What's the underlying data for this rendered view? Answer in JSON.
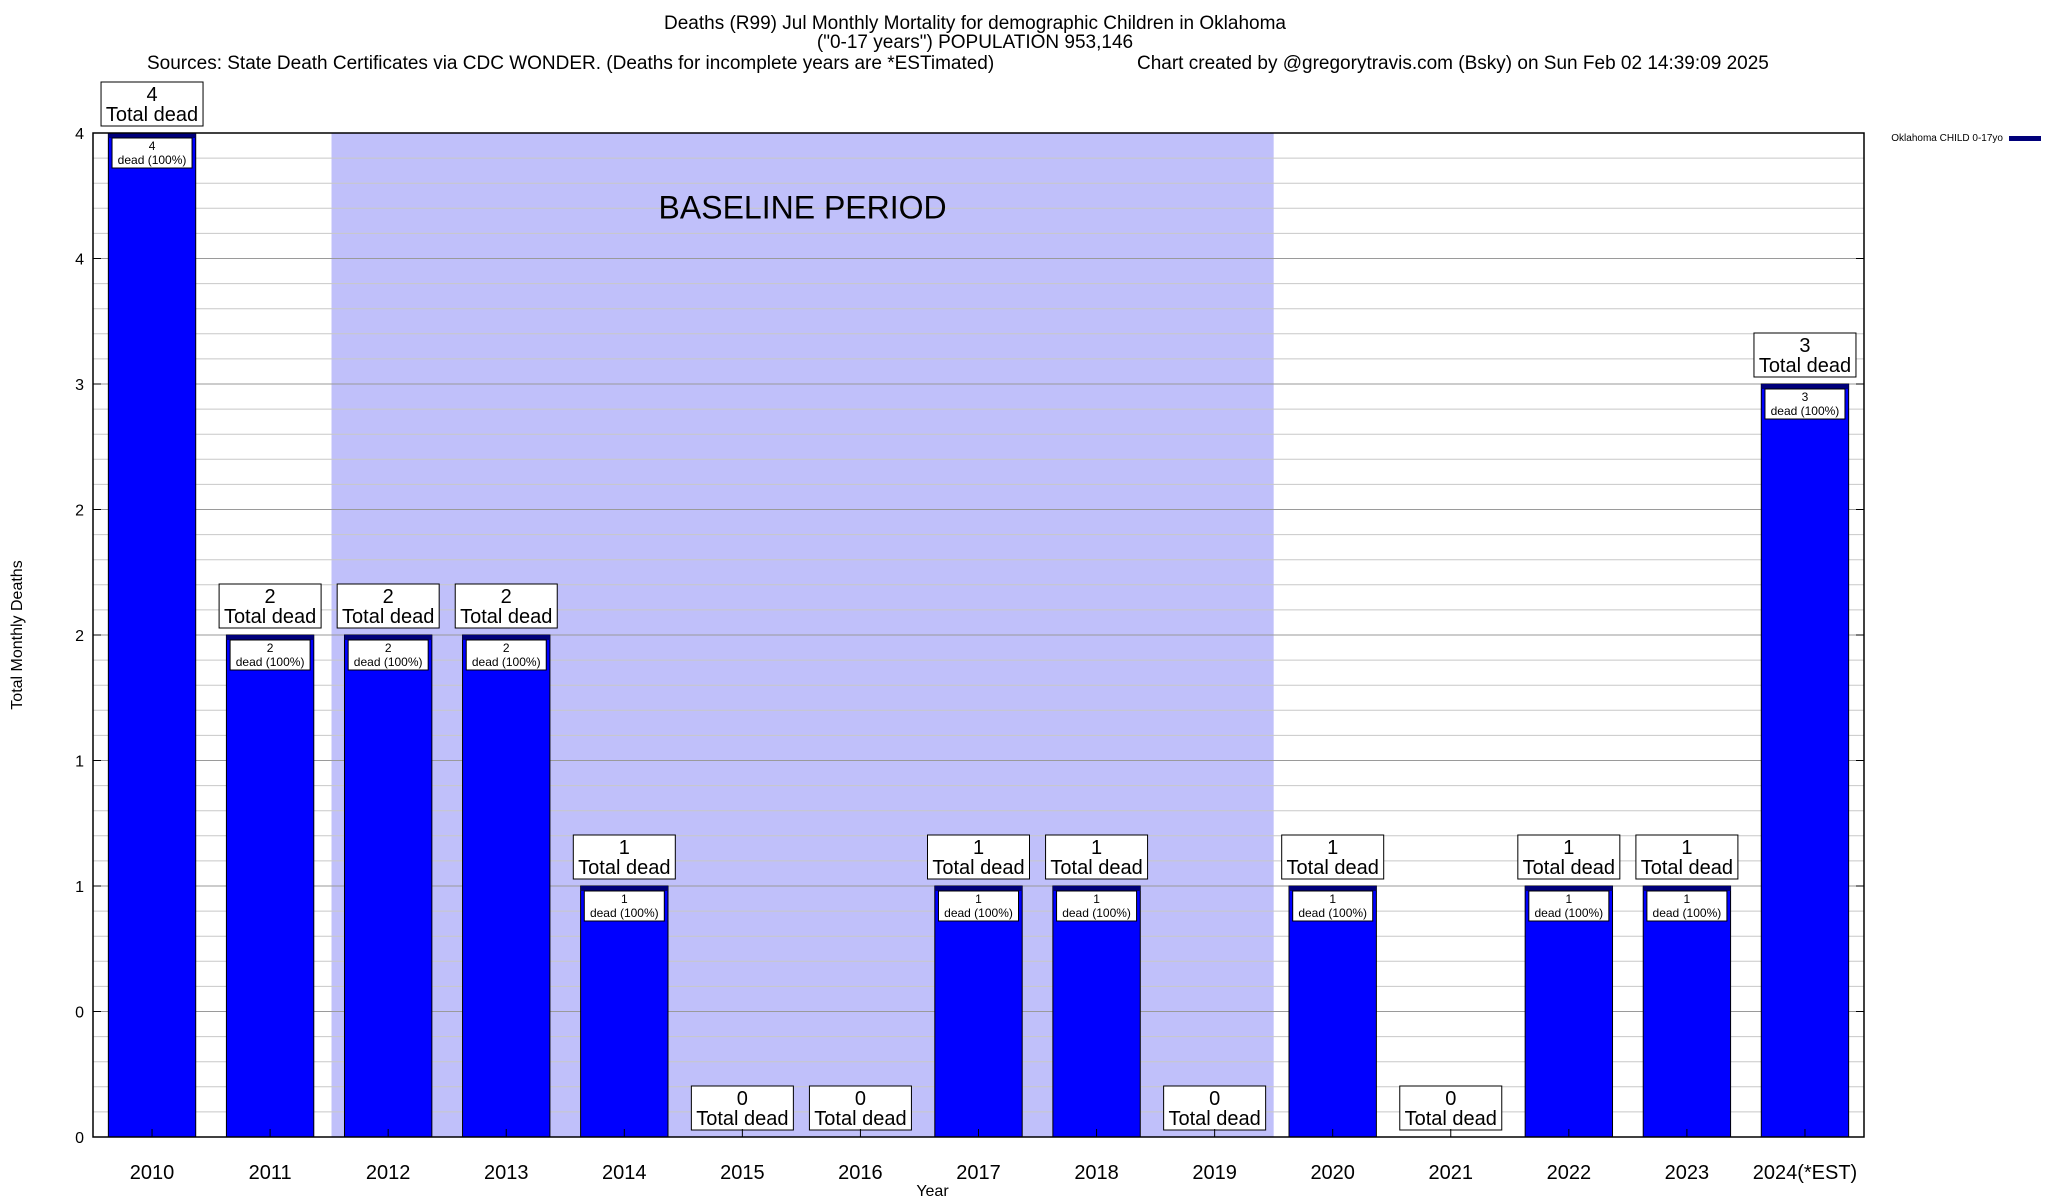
{
  "header": {
    "title_line1": "Deaths (R99) Jul Monthly Mortality for demographic Children in Oklahoma",
    "title_line2": "(\"0-17 years\") POPULATION 953,146",
    "sources": "Sources: State Death Certificates via CDC WONDER. (Deaths for incomplete years are *ESTimated)",
    "credit": "Chart created by @gregorytravis.com (Bsky) on Sun Feb 02 14:39:09 2025"
  },
  "colors": {
    "bar": "#0000ff",
    "bar_top": "#00007a",
    "baseline_band": "#c0c0fa",
    "grid": "#c8c8c8"
  },
  "chart_data": {
    "type": "bar",
    "xlabel": "Year",
    "ylabel": "Total Monthly Deaths",
    "ylim": [
      0,
      4
    ],
    "yticks": [
      {
        "value": 0,
        "label": "0"
      },
      {
        "value": 0.5,
        "label": "0"
      },
      {
        "value": 1,
        "label": "1"
      },
      {
        "value": 1.5,
        "label": "1"
      },
      {
        "value": 2,
        "label": "2"
      },
      {
        "value": 2.5,
        "label": "2"
      },
      {
        "value": 3,
        "label": "3"
      },
      {
        "value": 3.5,
        "label": "4"
      },
      {
        "value": 4,
        "label": "4"
      }
    ],
    "grid": true,
    "legend": {
      "position": "top-right",
      "label": "Oklahoma CHILD 0-17yo"
    },
    "baseline_period": {
      "label": "BASELINE PERIOD",
      "from": "2012",
      "to": "2019"
    },
    "total_label": "Total dead",
    "categories": [
      "2010",
      "2011",
      "2012",
      "2013",
      "2014",
      "2015",
      "2016",
      "2017",
      "2018",
      "2019",
      "2020",
      "2021",
      "2022",
      "2023",
      "2024(*EST)"
    ],
    "values": [
      4,
      2,
      2,
      2,
      1,
      0,
      0,
      1,
      1,
      0,
      1,
      0,
      1,
      1,
      3
    ],
    "inner_labels": [
      "4",
      "2",
      "2",
      "2",
      "1",
      "",
      "",
      "1",
      "1",
      "",
      "1",
      "",
      "1",
      "1",
      "3"
    ],
    "inner_label_suffix": "dead (100%)",
    "series": [
      {
        "name": "Oklahoma CHILD 0-17yo",
        "values": [
          4,
          2,
          2,
          2,
          1,
          0,
          0,
          1,
          1,
          0,
          1,
          0,
          1,
          1,
          3
        ]
      }
    ]
  }
}
